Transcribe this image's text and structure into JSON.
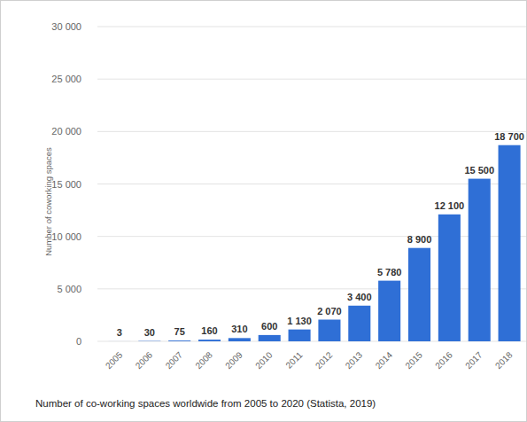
{
  "chart_data": {
    "type": "bar",
    "title": "Number of co-working spaces worldwide from 2005 to 2020 (Statista, 2019)",
    "y_label": "Number of coworking spaces",
    "categories": [
      "2005",
      "2006",
      "2007",
      "2008",
      "2009",
      "2010",
      "2011",
      "2012",
      "2013",
      "2014",
      "2015",
      "2016",
      "2017",
      "2018"
    ],
    "values": [
      3,
      30,
      75,
      160,
      310,
      600,
      1130,
      2070,
      3400,
      5780,
      8900,
      12100,
      15500,
      18700
    ],
    "value_labels": [
      "3",
      "30",
      "75",
      "160",
      "310",
      "600",
      "1 130",
      "2 070",
      "3 400",
      "5 780",
      "8 900",
      "12 100",
      "15 500",
      "18 700"
    ],
    "color": "#2f6fd6",
    "ylim": [
      0,
      30000
    ],
    "yticks": [
      0,
      {
        "value": 5000,
        "label": "5 000"
      },
      {
        "value": 10000,
        "label": "10 000"
      },
      {
        "value": 15000,
        "label": "15 000"
      },
      {
        "value": 20000,
        "label": "20 000"
      },
      {
        "value": 25000,
        "label": "25 000"
      },
      {
        "value": 30000,
        "label": "30 000"
      }
    ],
    "grid": true,
    "data_labels": true
  }
}
